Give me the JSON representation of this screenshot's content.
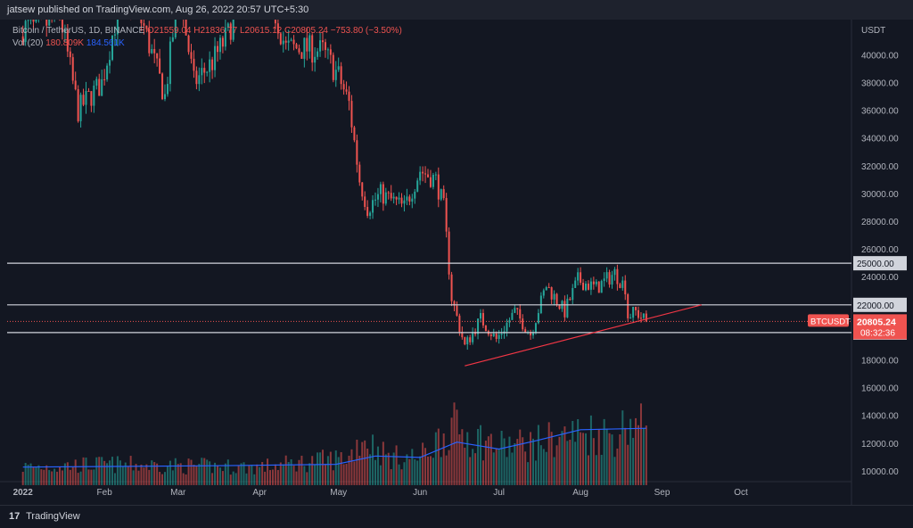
{
  "header": {
    "published": "jatsew published on TradingView.com, Aug 26, 2022 20:57 UTC+5:30"
  },
  "legend": {
    "symbol": "Bitcoin / TetherUS, 1D, BINANCE",
    "ohlc": "O21559.04  H21836.77  L20615.12  C20805.24  −753.80 (−3.50%)",
    "vol_label": "Vol (20)",
    "vol_value": "180.809K",
    "vol_ma": "184.561K"
  },
  "footer": {
    "brand": "TradingView",
    "logo": "17"
  },
  "colors": {
    "up": "#26a69a",
    "down": "#ef5350",
    "ma": "#2962ff",
    "trendline": "#f23645",
    "level": "#d1d4dc",
    "bg": "#131722"
  },
  "chart_data": {
    "type": "candlestick",
    "symbol": "BTCUSDT",
    "currency": "USDT",
    "last_price": "20805.24",
    "countdown": "08:32:36",
    "y_ticks": [
      "10000.00",
      "12000.00",
      "14000.00",
      "16000.00",
      "18000.00",
      "20000.00",
      "22000.00",
      "24000.00",
      "26000.00",
      "28000.00",
      "30000.00",
      "32000.00",
      "34000.00",
      "36000.00",
      "38000.00",
      "40000.00"
    ],
    "x_labels": [
      "2022",
      "Feb",
      "Mar",
      "Apr",
      "May",
      "Jun",
      "Jul",
      "Aug",
      "Sep",
      "Oct"
    ],
    "levels": [
      {
        "price": 25000,
        "label": "25000.00"
      },
      {
        "price": 22000,
        "label": "22000.00"
      },
      {
        "price": 20000,
        "label": "20000.00"
      }
    ],
    "trendline": {
      "from": [
        "2022-06-18",
        17600
      ],
      "to": [
        "2022-09-16",
        22000
      ]
    },
    "price_anchors": [
      [
        "2022-01-08",
        42000
      ],
      [
        "2022-01-15",
        43000
      ],
      [
        "2022-01-22",
        36000
      ],
      [
        "2022-01-24",
        36500
      ],
      [
        "2022-01-31",
        38000
      ],
      [
        "2022-02-07",
        44000
      ],
      [
        "2022-02-10",
        44500
      ],
      [
        "2022-02-16",
        42000
      ],
      [
        "2022-02-24",
        37000
      ],
      [
        "2022-02-28",
        43000
      ],
      [
        "2022-03-02",
        44000
      ],
      [
        "2022-03-07",
        38000
      ],
      [
        "2022-03-14",
        39500
      ],
      [
        "2022-03-20",
        41500
      ],
      [
        "2022-03-28",
        46800
      ],
      [
        "2022-04-02",
        46000
      ],
      [
        "2022-04-11",
        40500
      ],
      [
        "2022-04-18",
        40500
      ],
      [
        "2022-04-25",
        40300
      ],
      [
        "2022-05-01",
        38500
      ],
      [
        "2022-05-05",
        36500
      ],
      [
        "2022-05-09",
        31000
      ],
      [
        "2022-05-12",
        29000
      ],
      [
        "2022-05-17",
        30000
      ],
      [
        "2022-05-26",
        29000
      ],
      [
        "2022-06-01",
        31700
      ],
      [
        "2022-06-07",
        31000
      ],
      [
        "2022-06-10",
        29000
      ],
      [
        "2022-06-13",
        22500
      ],
      [
        "2022-06-18",
        19000
      ],
      [
        "2022-06-24",
        21000
      ],
      [
        "2022-06-30",
        19500
      ],
      [
        "2022-07-07",
        21500
      ],
      [
        "2022-07-13",
        19900
      ],
      [
        "2022-07-19",
        23400
      ],
      [
        "2022-07-26",
        21500
      ],
      [
        "2022-07-31",
        23800
      ],
      [
        "2022-08-07",
        23200
      ],
      [
        "2022-08-14",
        24300
      ],
      [
        "2022-08-18",
        23300
      ],
      [
        "2022-08-19",
        21200
      ],
      [
        "2022-08-22",
        21500
      ],
      [
        "2022-08-26",
        20805
      ]
    ],
    "volume_ticks": [
      "10000.00",
      "12000.00",
      "14000.00"
    ],
    "volume_profile": [
      [
        "2022-01-01",
        10300
      ],
      [
        "2022-02-01",
        10500
      ],
      [
        "2022-03-01",
        10400
      ],
      [
        "2022-04-01",
        10300
      ],
      [
        "2022-05-05",
        11000
      ],
      [
        "2022-05-10",
        12500
      ],
      [
        "2022-05-20",
        11000
      ],
      [
        "2022-06-01",
        11000
      ],
      [
        "2022-06-13",
        13200
      ],
      [
        "2022-06-20",
        12600
      ],
      [
        "2022-07-01",
        11800
      ],
      [
        "2022-07-15",
        12000
      ],
      [
        "2022-07-25",
        12500
      ],
      [
        "2022-08-05",
        12800
      ],
      [
        "2022-08-15",
        12600
      ],
      [
        "2022-08-19",
        13600
      ],
      [
        "2022-08-26",
        13000
      ]
    ],
    "volume_ma": [
      [
        "2022-01-01",
        10300
      ],
      [
        "2022-03-15",
        10400
      ],
      [
        "2022-04-30",
        10500
      ],
      [
        "2022-05-15",
        11100
      ],
      [
        "2022-06-01",
        11000
      ],
      [
        "2022-06-15",
        12100
      ],
      [
        "2022-07-01",
        11600
      ],
      [
        "2022-07-15",
        12200
      ],
      [
        "2022-08-01",
        13000
      ],
      [
        "2022-08-26",
        13100
      ]
    ]
  }
}
